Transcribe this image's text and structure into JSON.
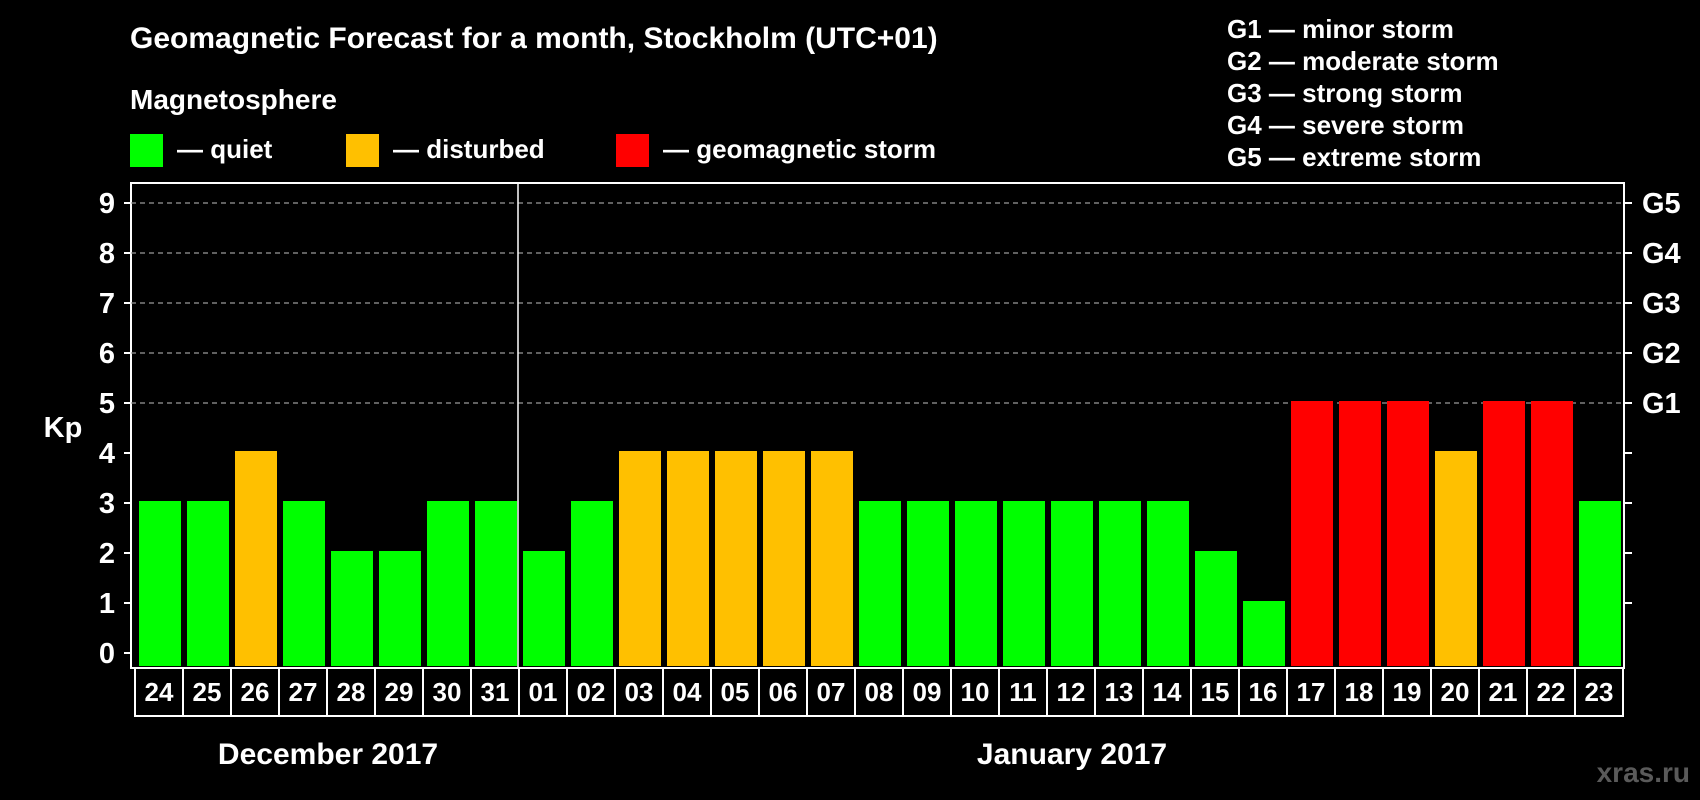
{
  "title": "Geomagnetic Forecast for a month, Stockholm (UTC+01)",
  "legend": {
    "heading": "Magnetosphere",
    "items": [
      {
        "key": "quiet",
        "label": "— quiet",
        "color": "#00ff00"
      },
      {
        "key": "disturbed",
        "label": "— disturbed",
        "color": "#ffc000"
      },
      {
        "key": "storm",
        "label": "— geomagnetic storm",
        "color": "#ff0000"
      }
    ]
  },
  "storm_scale": [
    "G1 — minor storm",
    "G2 — moderate storm",
    "G3 — strong storm",
    "G4 — severe storm",
    "G5 — extreme storm"
  ],
  "watermark": "xras.ru",
  "chart_data": {
    "type": "bar",
    "title": "Geomagnetic Forecast for a month, Stockholm (UTC+01)",
    "ylabel": "Kp",
    "ylim": [
      0,
      9
    ],
    "yticks": [
      0,
      1,
      2,
      3,
      4,
      5,
      6,
      7,
      8,
      9
    ],
    "right_axis_labels": [
      {
        "kp": 5,
        "label": "G1"
      },
      {
        "kp": 6,
        "label": "G2"
      },
      {
        "kp": 7,
        "label": "G3"
      },
      {
        "kp": 8,
        "label": "G4"
      },
      {
        "kp": 9,
        "label": "G5"
      }
    ],
    "grid_dashed_from_kp": 5,
    "categories": [
      "24",
      "25",
      "26",
      "27",
      "28",
      "29",
      "30",
      "31",
      "01",
      "02",
      "03",
      "04",
      "05",
      "06",
      "07",
      "08",
      "09",
      "10",
      "11",
      "12",
      "13",
      "14",
      "15",
      "16",
      "17",
      "18",
      "19",
      "20",
      "21",
      "22",
      "23"
    ],
    "values": [
      3,
      3,
      4,
      3,
      2,
      2,
      3,
      3,
      2,
      3,
      4,
      4,
      4,
      4,
      4,
      3,
      3,
      3,
      3,
      3,
      3,
      3,
      2,
      1,
      5,
      5,
      5,
      4,
      5,
      5,
      3
    ],
    "month_groups": [
      {
        "label": "December 2017",
        "start": 0,
        "end": 7
      },
      {
        "label": "January 2017",
        "start": 8,
        "end": 30
      }
    ],
    "colors": {
      "quiet": "#00ff00",
      "disturbed": "#ffc000",
      "storm": "#ff0000"
    }
  }
}
